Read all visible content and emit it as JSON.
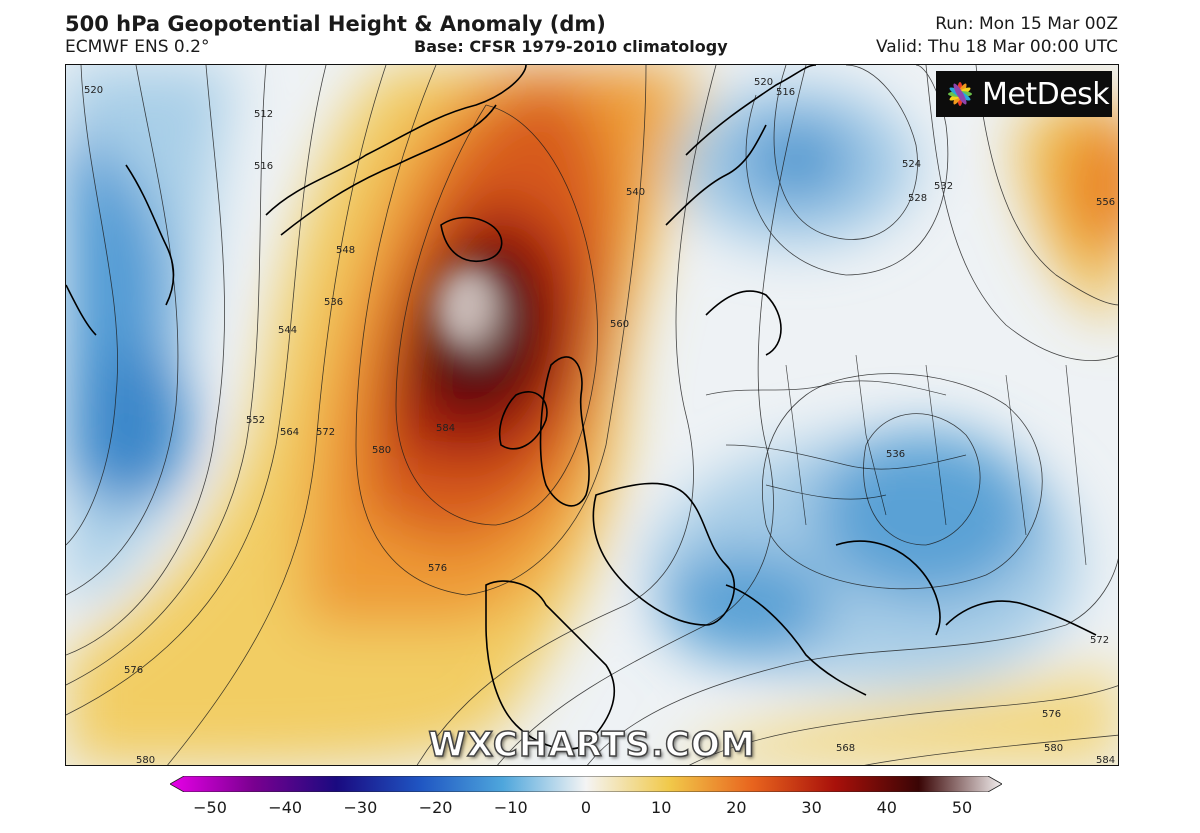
{
  "header": {
    "title": "500 hPa Geopotential Height & Anomaly (dm)",
    "model": "ECMWF ENS 0.2°",
    "base": "Base: CFSR 1979-2010 climatology",
    "run": "Run: Mon 15 Mar 00Z",
    "valid": "Valid: Thu 18 Mar 00:00 UTC"
  },
  "logo": {
    "text": "MetDesk",
    "icon": "metdesk-flower-icon"
  },
  "watermark": "WXCHARTS.COM",
  "colorbar": {
    "ticks": [
      "−50",
      "−40",
      "−30",
      "−20",
      "−10",
      "0",
      "10",
      "20",
      "30",
      "40",
      "50"
    ],
    "colors": [
      "#e800e8",
      "#7a0090",
      "#1a0a80",
      "#1f55c2",
      "#4ea6dc",
      "#f4f4f4",
      "#f1c94a",
      "#e8641e",
      "#a8100a",
      "#3a0505",
      "#f2eeee"
    ]
  },
  "contour_labels": [
    "520",
    "512",
    "516",
    "548",
    "536",
    "544",
    "552",
    "564",
    "572",
    "580",
    "584",
    "576",
    "576",
    "580",
    "540",
    "560",
    "520",
    "516",
    "524",
    "528",
    "532",
    "556",
    "536",
    "568",
    "572",
    "576",
    "580",
    "584"
  ]
}
